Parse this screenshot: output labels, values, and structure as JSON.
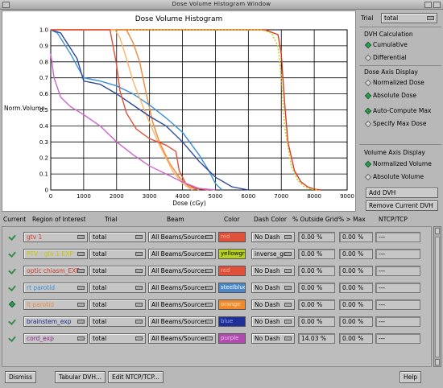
{
  "window_title": "Dose Volume Histogram Window",
  "chart_data": {
    "type": "line",
    "title": "Dose Volume Histogram",
    "xlabel": "Dose (cGy)",
    "ylabel": "Norm.Volume",
    "xlim": [
      0,
      9000
    ],
    "ylim": [
      0,
      1.0
    ],
    "xticks": [
      0,
      1000,
      2000,
      3000,
      4000,
      5000,
      6000,
      7000,
      8000,
      9000
    ],
    "yticks": [
      0,
      0.1,
      0.2,
      0.3,
      0.4,
      0.5,
      0.6,
      0.7,
      0.8,
      0.9,
      1.0
    ],
    "ytick_labels": [
      "0",
      "0.1",
      "0.2",
      "0.3",
      "0.4",
      "0.5",
      "0.6",
      "0.7",
      "0.8",
      "0.9",
      "1.0"
    ],
    "grid": true,
    "series": [
      {
        "color": "#d63a2a",
        "dash": false,
        "x": [
          0,
          6500,
          6900,
          7000,
          7100,
          7200,
          7400,
          7600,
          7800,
          8000,
          8200
        ],
        "y": [
          1.0,
          1.0,
          0.97,
          0.85,
          0.55,
          0.3,
          0.12,
          0.05,
          0.02,
          0.005,
          0
        ]
      },
      {
        "color": "#c8c800",
        "dash": true,
        "x": [
          0,
          6400,
          6700,
          6900,
          7000,
          7100,
          7300,
          7500,
          7700,
          7900,
          8100
        ],
        "y": [
          1.0,
          1.0,
          0.98,
          0.9,
          0.7,
          0.4,
          0.15,
          0.06,
          0.02,
          0.005,
          0
        ]
      },
      {
        "color": "#f0883a",
        "dash": false,
        "x": [
          0,
          2300,
          2500,
          2700,
          2900,
          3100,
          3300,
          3600,
          3900,
          4200,
          4500
        ],
        "y": [
          1.0,
          1.0,
          0.92,
          0.8,
          0.6,
          0.42,
          0.3,
          0.17,
          0.08,
          0.02,
          0
        ]
      },
      {
        "color": "#3a8fd8",
        "dash": false,
        "x": [
          0,
          200,
          600,
          1000,
          1500,
          2000,
          2500,
          3000,
          3500,
          4000,
          4500,
          4800,
          5000,
          5200
        ],
        "y": [
          1.0,
          0.98,
          0.85,
          0.7,
          0.68,
          0.65,
          0.6,
          0.53,
          0.45,
          0.36,
          0.22,
          0.12,
          0.04,
          0
        ]
      },
      {
        "color": "#ffb366",
        "dash": false,
        "x": [
          0,
          1950,
          2100,
          2300,
          2500,
          2800,
          3000,
          3300,
          3700,
          4000,
          4300
        ],
        "y": [
          1.0,
          1.0,
          0.95,
          0.82,
          0.68,
          0.52,
          0.42,
          0.28,
          0.12,
          0.04,
          0
        ]
      },
      {
        "color": "#2d4a9a",
        "dash": false,
        "x": [
          0,
          300,
          800,
          1000,
          1500,
          2000,
          2500,
          3000,
          3500,
          4000,
          4500,
          5000,
          5500,
          6000
        ],
        "y": [
          1.0,
          0.98,
          0.82,
          0.68,
          0.66,
          0.6,
          0.53,
          0.46,
          0.4,
          0.3,
          0.18,
          0.08,
          0.02,
          0
        ]
      },
      {
        "color": "#e0503a",
        "dash": false,
        "x": [
          0,
          1800,
          2000,
          2100,
          2300,
          2600,
          3000,
          3500,
          3800,
          3900,
          4100,
          4400,
          4800
        ],
        "y": [
          1.0,
          1.0,
          0.78,
          0.62,
          0.48,
          0.38,
          0.32,
          0.28,
          0.24,
          0.12,
          0.04,
          0.01,
          0
        ]
      },
      {
        "color": "#cc66cc",
        "dash": false,
        "x": [
          0,
          100,
          300,
          600,
          1000,
          1500,
          2000,
          2500,
          3000,
          3500,
          4000,
          4500,
          5000
        ],
        "y": [
          0.85,
          0.7,
          0.58,
          0.52,
          0.47,
          0.4,
          0.3,
          0.22,
          0.15,
          0.1,
          0.05,
          0.01,
          0
        ]
      }
    ]
  },
  "side": {
    "trial_label": "Trial",
    "trial_value": "total",
    "dvh_calc_label": "DVH Calculation",
    "cumulative": "Cumulative",
    "differential": "Differential",
    "dose_axis_label": "Dose Axis Display",
    "normalized_dose": "Normalized Dose",
    "absolute_dose": "Absolute Dose",
    "auto_compute_max": "Auto-Compute Max",
    "specify_max_dose": "Specify Max Dose",
    "volume_axis_label": "Volume Axis Display",
    "normalized_volume": "Normalized Volume",
    "absolute_volume": "Absolute Volume",
    "add_dvh": "Add DVH",
    "remove_dvh": "Remove Current DVH"
  },
  "table": {
    "headers": {
      "current": "Current",
      "roi": "Region of Interest",
      "trial": "Trial",
      "beam": "Beam",
      "color": "Color",
      "dash_color": "Dash Color",
      "outside_grid": "% Outside Grid",
      "pct_max": "% > Max",
      "ntcp": "NTCP/TCP"
    },
    "rows": [
      {
        "current": "check",
        "roi": "gtv 1",
        "roi_color": "#d63a2a",
        "trial": "total",
        "beam": "All Beams/Sources",
        "color_name": "red",
        "color_bg": "#e0503a",
        "color_text": "#f4a89a",
        "dash": "No Dash",
        "outside": "0.00 %",
        "pctmax": "0.00 %",
        "ntcp": "---"
      },
      {
        "current": "check",
        "roi": "PTV - gtv 1 EXP",
        "roi_color": "#c8c800",
        "trial": "total",
        "beam": "All Beams/Sources",
        "color_name": "yellowgre",
        "color_bg": "#b8d020",
        "color_text": "#000000",
        "dash": "inverse_gr",
        "outside": "0.00 %",
        "pctmax": "0.00 %",
        "ntcp": "---"
      },
      {
        "current": "check",
        "roi": "optic chiasm_EXP",
        "roi_color": "#d63a2a",
        "trial": "total",
        "beam": "All Beams/Sources",
        "color_name": "red",
        "color_bg": "#e0503a",
        "color_text": "#f4a89a",
        "dash": "No Dash",
        "outside": "0.00 %",
        "pctmax": "0.00 %",
        "ntcp": "---"
      },
      {
        "current": "check",
        "roi": "rt parotid",
        "roi_color": "#3a8fd8",
        "trial": "total",
        "beam": "All Beams/Sources",
        "color_name": "steelblue",
        "color_bg": "#4a86c8",
        "color_text": "#ffffff",
        "dash": "No Dash",
        "outside": "0.00 %",
        "pctmax": "0.00 %",
        "ntcp": "---"
      },
      {
        "current": "diamond",
        "roi": "lt parotid",
        "roi_color": "#f0883a",
        "trial": "total",
        "beam": "All Beams/Sources",
        "color_name": "orange",
        "color_bg": "#f08a2a",
        "color_text": "#ffe0c0",
        "dash": "No Dash",
        "outside": "0.00 %",
        "pctmax": "0.00 %",
        "ntcp": "---"
      },
      {
        "current": "check",
        "roi": "brainstem_exp",
        "roi_color": "#1c2c8a",
        "trial": "total",
        "beam": "All Beams/Sources",
        "color_name": "blue",
        "color_bg": "#1f2f9a",
        "color_text": "#9aa8e8",
        "dash": "No Dash",
        "outside": "0.00 %",
        "pctmax": "0.00 %",
        "ntcp": "---"
      },
      {
        "current": "check",
        "roi": "cord_exp",
        "roi_color": "#8a2a8a",
        "trial": "total",
        "beam": "All Beams/Sources",
        "color_name": "purple",
        "color_bg": "#b04ab0",
        "color_text": "#f0c0f0",
        "dash": "No Dash",
        "outside": "14.03 %",
        "pctmax": "0.00 %",
        "ntcp": "---"
      }
    ]
  },
  "bottom": {
    "dismiss": "Dismiss",
    "tabular": "Tabular DVH...",
    "edit_ntcp": "Edit NTCP/TCP...",
    "help": "Help"
  }
}
